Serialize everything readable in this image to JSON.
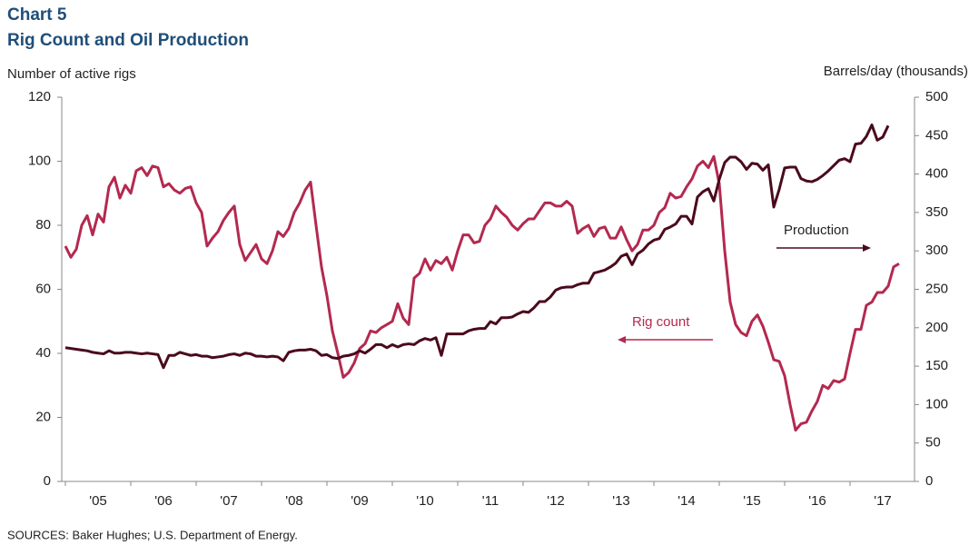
{
  "chart_data": {
    "type": "line",
    "title": "Chart 5",
    "subtitle": "Rig Count and Oil Production",
    "y_label": "Number of active rigs",
    "y2_label": "Barrels/day (thousands)",
    "source": "SOURCES: Baker Hughes; U.S. Department of Energy.",
    "annotations": [
      "Production",
      "Rig count"
    ],
    "categories": [
      null,
      null,
      null,
      null,
      null,
      null,
      "'05",
      null,
      null,
      null,
      null,
      null,
      null,
      null,
      null,
      null,
      null,
      null,
      "'06",
      null,
      null,
      null,
      null,
      null,
      null,
      null,
      null,
      null,
      null,
      null,
      "'07",
      null,
      null,
      null,
      null,
      null,
      null,
      null,
      null,
      null,
      null,
      null,
      "'08",
      null,
      null,
      null,
      null,
      null,
      null,
      null,
      null,
      null,
      null,
      null,
      "'09",
      null,
      null,
      null,
      null,
      null,
      null,
      null,
      null,
      null,
      null,
      null,
      "'10",
      null,
      null,
      null,
      null,
      null,
      null,
      null,
      null,
      null,
      null,
      null,
      "'11",
      null,
      null,
      null,
      null,
      null,
      null,
      null,
      null,
      null,
      null,
      null,
      "'12",
      null,
      null,
      null,
      null,
      null,
      null,
      null,
      null,
      null,
      null,
      null,
      "'13",
      null,
      null,
      null,
      null,
      null,
      null,
      null,
      null,
      null,
      null,
      null,
      "'14",
      null,
      null,
      null,
      null,
      null,
      null,
      null,
      null,
      null,
      null,
      null,
      "'15",
      null,
      null,
      null,
      null,
      null,
      null,
      null,
      null,
      null,
      null,
      null,
      "'16",
      null,
      null,
      null,
      null,
      null,
      null,
      null,
      null,
      null,
      null,
      null,
      "'17",
      null,
      null,
      null
    ],
    "series": [
      {
        "name": "Rig count",
        "color": "#b3294f",
        "axis": "y",
        "values": [
          73.5,
          70,
          72.5,
          80,
          83,
          77,
          83.5,
          81,
          92,
          95,
          88.5,
          92.5,
          90,
          97,
          98,
          95.5,
          98.5,
          98,
          92,
          93,
          91,
          90,
          91.5,
          92,
          87,
          84,
          73.5,
          76,
          78,
          81.5,
          84,
          86,
          74,
          69,
          71.5,
          74,
          69.5,
          68,
          72,
          78,
          76.5,
          79,
          84,
          87,
          91,
          93.5,
          80,
          67,
          58,
          47,
          40,
          32.5,
          34,
          37,
          41.5,
          43,
          47,
          46.5,
          48,
          49,
          50,
          55.5,
          51,
          49,
          63.5,
          65,
          69.5,
          66,
          69,
          68,
          70,
          66,
          72,
          77,
          77,
          74.5,
          75,
          80,
          82,
          86,
          84,
          82.5,
          80,
          78.5,
          80.5,
          82,
          82,
          84.5,
          87,
          87,
          86,
          86,
          87.5,
          86,
          77.5,
          79,
          80,
          76.5,
          79,
          79.5,
          76,
          76,
          79.5,
          75.5,
          72,
          74,
          78.5,
          78.5,
          80,
          84,
          85.5,
          90,
          88.5,
          89,
          92,
          94.5,
          98.5,
          100,
          98,
          101.5,
          93,
          72,
          56,
          49,
          46.5,
          45.5,
          50,
          52,
          48.5,
          43.5,
          38,
          37.5,
          33,
          24,
          16,
          18,
          18.5,
          22,
          25,
          30,
          29,
          31.5,
          31,
          32,
          40,
          47.5,
          47.5,
          55,
          56,
          59,
          59,
          61,
          67,
          68
        ]
      },
      {
        "name": "Production",
        "color": "#4a0a1c",
        "axis": "y2",
        "values": [
          174,
          173,
          172,
          171,
          170,
          168,
          167,
          166,
          170,
          167,
          167,
          168,
          168,
          167,
          166,
          167,
          166,
          165,
          148,
          164,
          164,
          168,
          166,
          164,
          165,
          163,
          163,
          161,
          162,
          163,
          165,
          166,
          164,
          167,
          166,
          163,
          163,
          162,
          163,
          162,
          157,
          168,
          170,
          171,
          171,
          172,
          170,
          164,
          165,
          161,
          160,
          163,
          164,
          166,
          170,
          167,
          172,
          178,
          178,
          174,
          178,
          175,
          178,
          179,
          178,
          183,
          186,
          184,
          187,
          164,
          192,
          192,
          192,
          192,
          196,
          198,
          199,
          199,
          208,
          205,
          213,
          213,
          214,
          218,
          221,
          220,
          226,
          234,
          234,
          240,
          249,
          252,
          253,
          253,
          256,
          258,
          258,
          271,
          273,
          275,
          279,
          284,
          293,
          296,
          282,
          296,
          301,
          309,
          314,
          316,
          328,
          331,
          335,
          345,
          345,
          335,
          370,
          377,
          381,
          365,
          393,
          415,
          422,
          422,
          416,
          406,
          414,
          413,
          405,
          412,
          357,
          380,
          408,
          409,
          409,
          394,
          391,
          390,
          393,
          398,
          404,
          411,
          418,
          420,
          416,
          439,
          440,
          449,
          464,
          444,
          448,
          463,
          null,
          null
        ]
      }
    ],
    "ylim": [
      0,
      120
    ],
    "yticks": [
      0,
      20,
      40,
      60,
      80,
      100,
      120
    ],
    "y2lim": [
      0,
      500
    ],
    "y2ticks": [
      0,
      50,
      100,
      150,
      200,
      250,
      300,
      350,
      400,
      450,
      500
    ],
    "grid": false
  }
}
